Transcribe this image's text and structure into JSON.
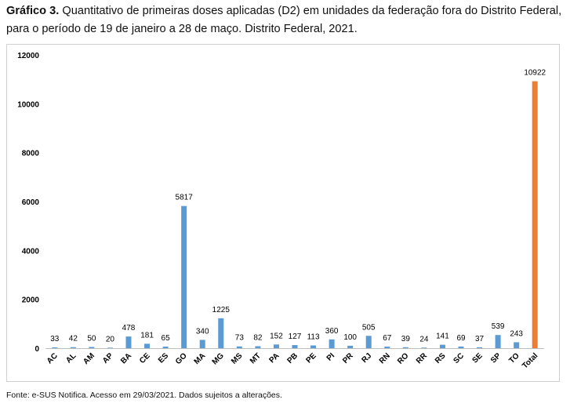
{
  "caption": {
    "label": "Gráfico 3.",
    "text": " Quantitativo de primeiras doses aplicadas (D2) em unidades da federação fora do Distrito Federal, para o período de 19 de janeiro a 28 de maço. Distrito Federal, 2021."
  },
  "source": "Fonte: e-SUS Notifica. Acesso em 29/03/2021. Dados sujeitos a alterações.",
  "colors": {
    "bar": "#5b9bd5",
    "total_bar": "#ed7d31",
    "axis": "#bfbfbf"
  },
  "chart_data": {
    "type": "bar",
    "categories": [
      "AC",
      "AL",
      "AM",
      "AP",
      "BA",
      "CE",
      "ES",
      "GO",
      "MA",
      "MG",
      "MS",
      "MT",
      "PA",
      "PB",
      "PE",
      "PI",
      "PR",
      "RJ",
      "RN",
      "RO",
      "RR",
      "RS",
      "SC",
      "SE",
      "SP",
      "TO",
      "Total"
    ],
    "values": [
      33,
      42,
      50,
      20,
      478,
      181,
      65,
      5817,
      340,
      1225,
      73,
      82,
      152,
      127,
      113,
      360,
      100,
      505,
      67,
      39,
      24,
      141,
      69,
      37,
      539,
      243,
      10922
    ],
    "data_labels": [
      "33",
      "42",
      "50",
      "20",
      "478",
      "181",
      "65",
      "5817",
      "340",
      "1225",
      "73",
      "82",
      "152",
      "127",
      "113",
      "360",
      "100",
      "505",
      "67",
      "39",
      "24",
      "141",
      "69",
      "37",
      "539",
      "243",
      "10922"
    ],
    "yticks": [
      "0",
      "2000",
      "4000",
      "6000",
      "8000",
      "10000",
      "12000"
    ],
    "ylim": [
      0,
      12000
    ],
    "grid": false,
    "legend": "none",
    "highlighted_category": "Total"
  }
}
